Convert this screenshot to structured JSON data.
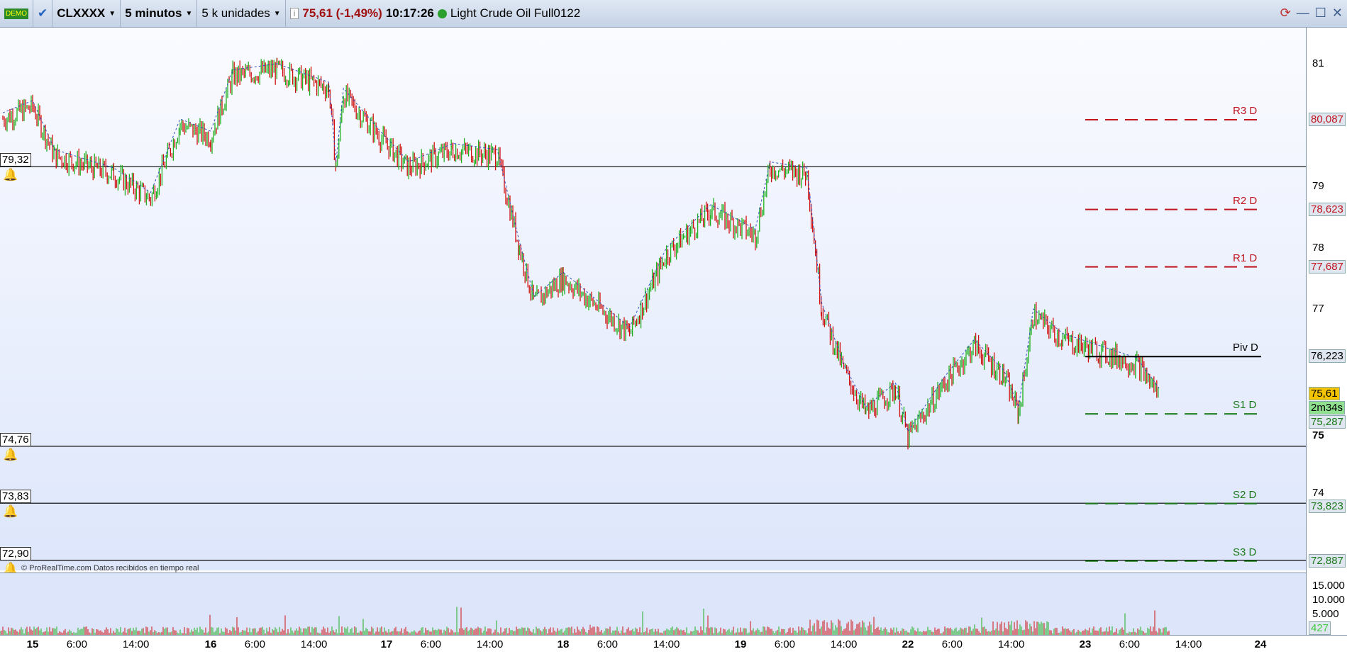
{
  "toolbar": {
    "demo_badge": "DEMO",
    "symbol": "CLXXXX",
    "timeframe": "5 minutos",
    "units": "5 k unidades",
    "last_price": "75,61 (-1,49%)",
    "time": "10:17:26",
    "instrument": "Light Crude Oil Full0122",
    "price_color": "#a01010"
  },
  "window_buttons": {
    "minimize": "—",
    "restore": "☐",
    "close": "✕"
  },
  "watermark": "© ProRealTime.com  Datos recibidos en tiempo real",
  "alerts": [
    {
      "label": "79,32",
      "price": 79.32
    },
    {
      "label": "74,76",
      "price": 74.76
    },
    {
      "label": "73,83",
      "price": 73.83
    },
    {
      "label": "72,90",
      "price": 72.9
    }
  ],
  "pivots": [
    {
      "name": "R3 D",
      "label": "80,087",
      "price": 80.087,
      "color": "#c0141e"
    },
    {
      "name": "R2 D",
      "label": "78,623",
      "price": 78.623,
      "color": "#c0141e"
    },
    {
      "name": "R1 D",
      "label": "77,687",
      "price": 77.687,
      "color": "#c0141e"
    },
    {
      "name": "Piv D",
      "label": "76,223",
      "price": 76.223,
      "color": "#000000"
    },
    {
      "name": "S1 D",
      "label": "75,287",
      "price": 75.287,
      "color": "#1a7a1a"
    },
    {
      "name": "S2 D",
      "label": "73,823",
      "price": 73.823,
      "color": "#1a7a1a"
    },
    {
      "name": "S3 D",
      "label": "72,887",
      "price": 72.887,
      "color": "#1a7a1a"
    }
  ],
  "price_axis": {
    "ticks": [
      {
        "label": "81",
        "price": 81
      },
      {
        "label": "79",
        "price": 79
      },
      {
        "label": "78",
        "price": 78
      },
      {
        "label": "77",
        "price": 77
      },
      {
        "label": "75",
        "price": 75
      },
      {
        "label": "74",
        "price": 74
      }
    ],
    "current": "75,61",
    "countdown": "2m34s"
  },
  "volume_axis": {
    "ticks": [
      "15.000",
      "10.000",
      "5.000"
    ],
    "current": "427"
  },
  "time_axis": [
    {
      "label": "15",
      "t": "15 00:00",
      "bold": true
    },
    {
      "label": "6:00",
      "t": "15 06:00"
    },
    {
      "label": "14:00",
      "t": "15 14:00"
    },
    {
      "label": "16",
      "t": "16 00:00",
      "bold": true
    },
    {
      "label": "6:00",
      "t": "16 06:00"
    },
    {
      "label": "14:00",
      "t": "16 14:00"
    },
    {
      "label": "17",
      "t": "17 00:00",
      "bold": true
    },
    {
      "label": "6:00",
      "t": "17 06:00"
    },
    {
      "label": "14:00",
      "t": "17 14:00"
    },
    {
      "label": "18",
      "t": "18 00:00",
      "bold": true
    },
    {
      "label": "6:00",
      "t": "18 06:00"
    },
    {
      "label": "14:00",
      "t": "18 14:00"
    },
    {
      "label": "19",
      "t": "19 00:00",
      "bold": true
    },
    {
      "label": "6:00",
      "t": "19 06:00"
    },
    {
      "label": "14:00",
      "t": "19 14:00"
    },
    {
      "label": "22",
      "t": "22 00:00",
      "bold": true
    },
    {
      "label": "6:00",
      "t": "22 06:00"
    },
    {
      "label": "14:00",
      "t": "22 14:00"
    },
    {
      "label": "23",
      "t": "23 00:00",
      "bold": true
    },
    {
      "label": "6:00",
      "t": "23 06:00"
    },
    {
      "label": "14:00",
      "t": "23 14:00"
    },
    {
      "label": "24",
      "t": "24 00:00",
      "bold": true
    }
  ],
  "chart_data": {
    "type": "line",
    "price_path": [
      [
        "14 20:00",
        80.1
      ],
      [
        "15 00:00",
        80.3
      ],
      [
        "15 03:00",
        79.5
      ],
      [
        "15 11:00",
        79.2
      ],
      [
        "15 16:00",
        78.8
      ],
      [
        "15 20:00",
        80.0
      ],
      [
        "16 00:00",
        79.8
      ],
      [
        "16 03:00",
        80.8
      ],
      [
        "16 09:00",
        80.9
      ],
      [
        "16 16:00",
        80.6
      ],
      [
        "16 17:00",
        79.3
      ],
      [
        "16 18:00",
        80.5
      ],
      [
        "16 23:00",
        79.8
      ],
      [
        "17 03:00",
        79.3
      ],
      [
        "17 09:00",
        79.6
      ],
      [
        "17 15:00",
        79.5
      ],
      [
        "17 18:00",
        78.0
      ],
      [
        "17 20:00",
        77.1
      ],
      [
        "18 00:00",
        77.5
      ],
      [
        "18 05:00",
        77.0
      ],
      [
        "18 09:00",
        76.6
      ],
      [
        "18 14:00",
        77.9
      ],
      [
        "18 20:00",
        78.6
      ],
      [
        "19 02:00",
        78.2
      ],
      [
        "19 04:00",
        79.3
      ],
      [
        "19 09:00",
        79.2
      ],
      [
        "19 11:00",
        77.0
      ],
      [
        "19 14:00",
        76.0
      ],
      [
        "19 17:00",
        75.3
      ],
      [
        "19 21:00",
        75.7
      ],
      [
        "22 00:00",
        74.9
      ],
      [
        "22 05:00",
        75.8
      ],
      [
        "22 09:00",
        76.4
      ],
      [
        "22 13:00",
        75.9
      ],
      [
        "22 15:00",
        75.3
      ],
      [
        "22 17:00",
        76.9
      ],
      [
        "22 21:00",
        76.5
      ],
      [
        "23 02:00",
        76.3
      ],
      [
        "23 07:00",
        76.1
      ],
      [
        "23 10:00",
        75.61
      ]
    ],
    "up_color": "#1fb01f",
    "down_color": "#d01010"
  }
}
